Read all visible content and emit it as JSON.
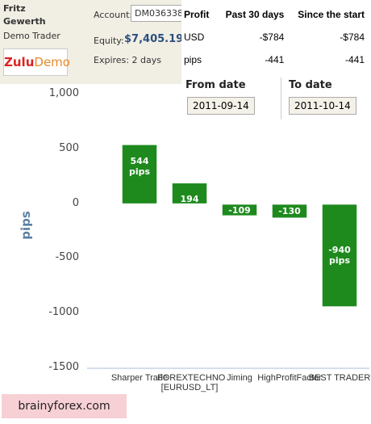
{
  "header": {
    "name_line1": "Fritz",
    "name_line2": "Gewerth",
    "role": "Demo Trader",
    "logo_a": "Zulu",
    "logo_b": "Demo",
    "account_label": "Account:",
    "account_value": "DM036338",
    "equity_label": "Equity:",
    "equity_value": "$7,405.19",
    "expires_label": "Expires:",
    "expires_value": "2 days"
  },
  "table": {
    "header": [
      "Profit",
      "Past 30 days",
      "Since the start"
    ],
    "rows": [
      [
        "USD",
        "-$784",
        "-$784"
      ],
      [
        "pips",
        "-441",
        "-441"
      ]
    ]
  },
  "dates": {
    "from_label": "From date",
    "from_value": "2011-09-14",
    "to_label": "To date",
    "to_value": "2011-10-14"
  },
  "chart_data": {
    "type": "bar",
    "y_label": "pips",
    "categories": [
      "Sharper Trade",
      "FOREXTECHNO [EURUSD_LT]",
      "Jiming",
      "HighProfitFactor",
      "BEST TRADER"
    ],
    "values": [
      544,
      194,
      -109,
      -130,
      -940
    ],
    "value_labels": [
      "544 pips",
      "194",
      "-109",
      "-130",
      "-940 pips"
    ],
    "color": "#1e8a1e",
    "ylim": [
      -1500,
      1000
    ],
    "yticks": [
      {
        "value": 1000,
        "label": "1,000"
      },
      500,
      0,
      -500,
      -1000,
      -1500
    ]
  },
  "watermark": "brainyforex.com"
}
